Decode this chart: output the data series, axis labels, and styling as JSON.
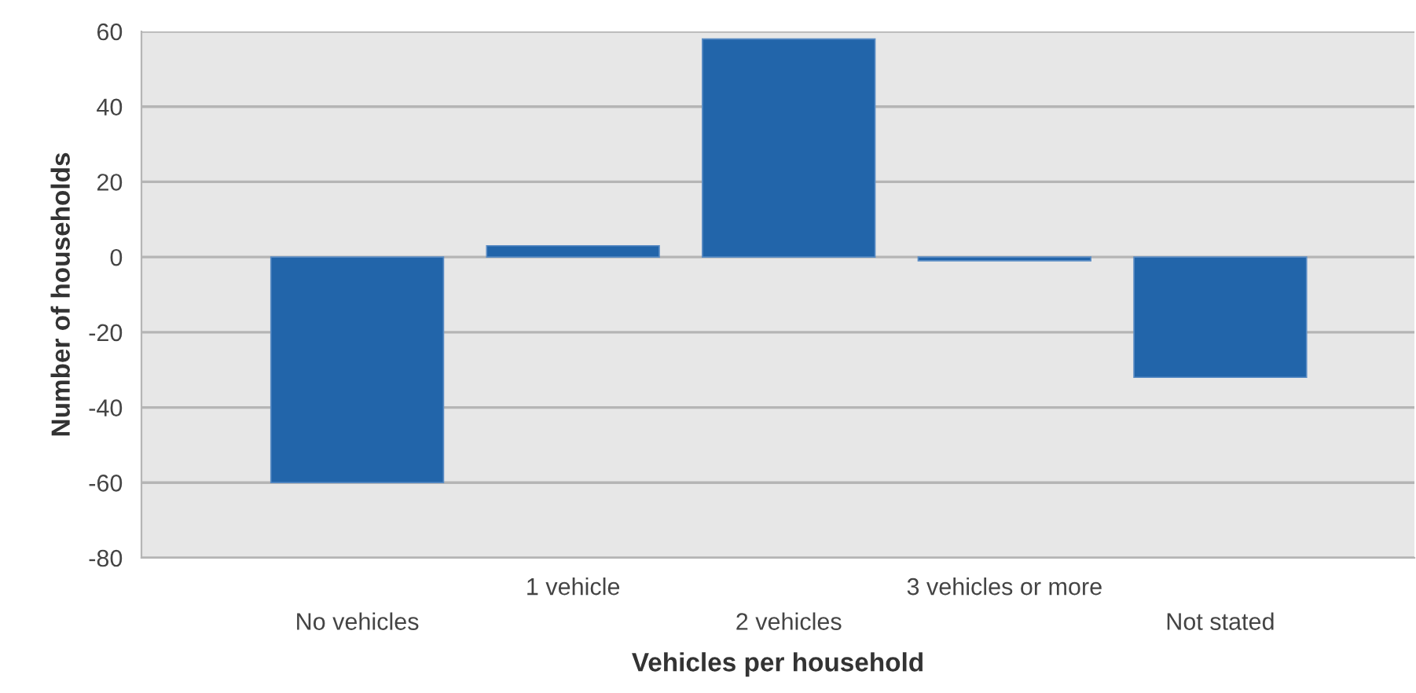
{
  "chart_data": {
    "type": "bar",
    "xlabel": "Vehicles per household",
    "ylabel": "Number of households",
    "categories": [
      "No vehicles",
      "1 vehicle",
      "2 vehicles",
      "3 vehicles or more",
      "Not stated"
    ],
    "values": [
      -60,
      3,
      58,
      -1,
      -32
    ],
    "color": "#2265aa",
    "ylim": [
      -80,
      60
    ],
    "yticks": [
      -80,
      -60,
      -40,
      -20,
      0,
      20,
      40,
      60
    ],
    "grid": "y"
  }
}
